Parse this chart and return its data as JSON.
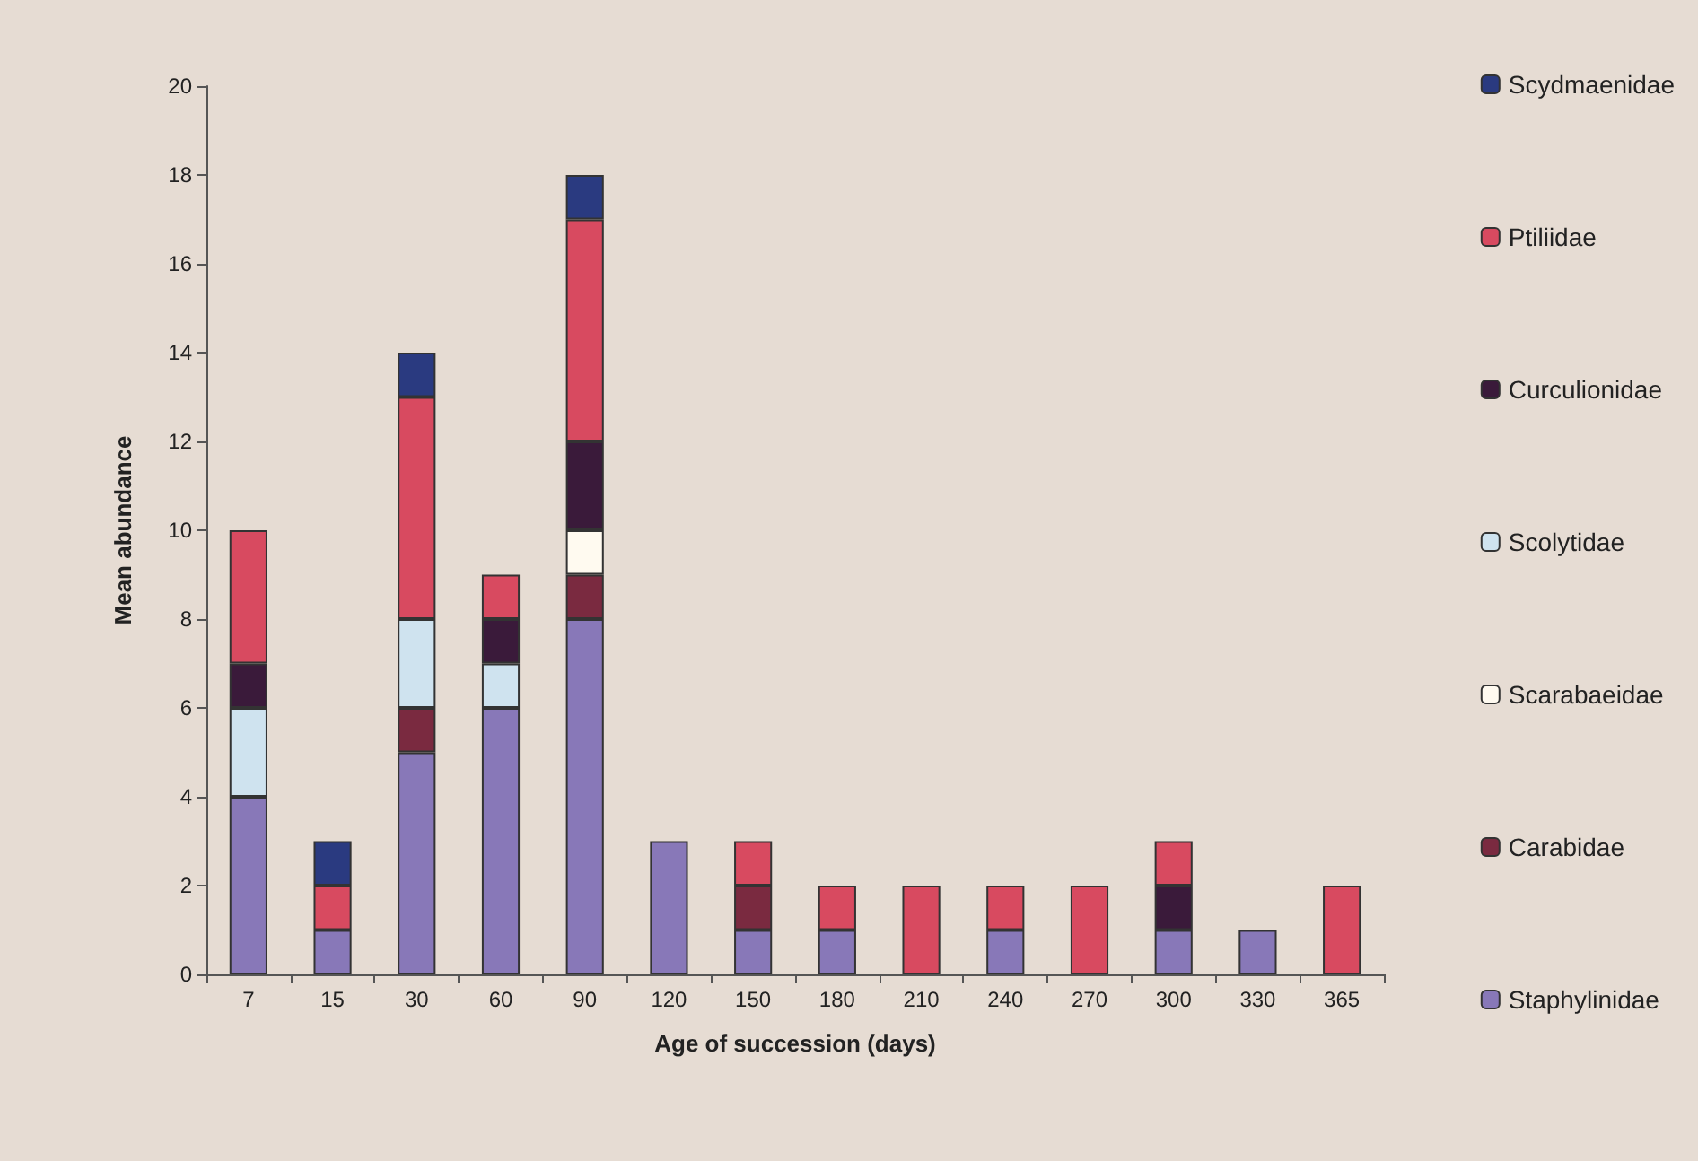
{
  "chart_data": {
    "type": "bar",
    "stacked": true,
    "xlabel": "Age of succession (days)",
    "ylabel": "Mean abundance",
    "categories": [
      "7",
      "15",
      "30",
      "60",
      "90",
      "120",
      "150",
      "180",
      "210",
      "240",
      "270",
      "300",
      "330",
      "365"
    ],
    "ylim": [
      0,
      20
    ],
    "yticks": [
      0,
      2,
      4,
      6,
      8,
      10,
      12,
      14,
      16,
      18,
      20
    ],
    "grid": false,
    "legend": "right",
    "series": [
      {
        "name": "Staphylinidae",
        "color": "#8878b8",
        "values": [
          4,
          1,
          5,
          6,
          8,
          3,
          1,
          1,
          null,
          1,
          null,
          1,
          1,
          null
        ]
      },
      {
        "name": "Carabidae",
        "color": "#7a2a40",
        "values": [
          null,
          null,
          1,
          null,
          1,
          null,
          1,
          null,
          null,
          null,
          null,
          null,
          null,
          null
        ]
      },
      {
        "name": "Scarabaeidae",
        "color": "#fffaf0",
        "values": [
          null,
          null,
          null,
          null,
          1,
          null,
          null,
          null,
          null,
          null,
          null,
          null,
          null,
          null
        ]
      },
      {
        "name": "Scolytidae",
        "color": "#cfe3ef",
        "values": [
          2,
          null,
          2,
          1,
          null,
          null,
          null,
          null,
          null,
          null,
          null,
          null,
          null,
          null
        ]
      },
      {
        "name": "Curculionidae",
        "color": "#3a1a3a",
        "values": [
          1,
          null,
          null,
          1,
          2,
          null,
          null,
          null,
          null,
          null,
          null,
          1,
          null,
          null
        ]
      },
      {
        "name": "Ptiliidae",
        "color": "#d84a60",
        "values": [
          3,
          1,
          5,
          1,
          5,
          null,
          1,
          1,
          2,
          1,
          2,
          1,
          null,
          2
        ]
      },
      {
        "name": "Scydmaenidae",
        "color": "#2a3a80",
        "values": [
          null,
          1,
          1,
          null,
          1,
          null,
          null,
          null,
          null,
          null,
          null,
          null,
          null,
          null
        ]
      }
    ]
  }
}
